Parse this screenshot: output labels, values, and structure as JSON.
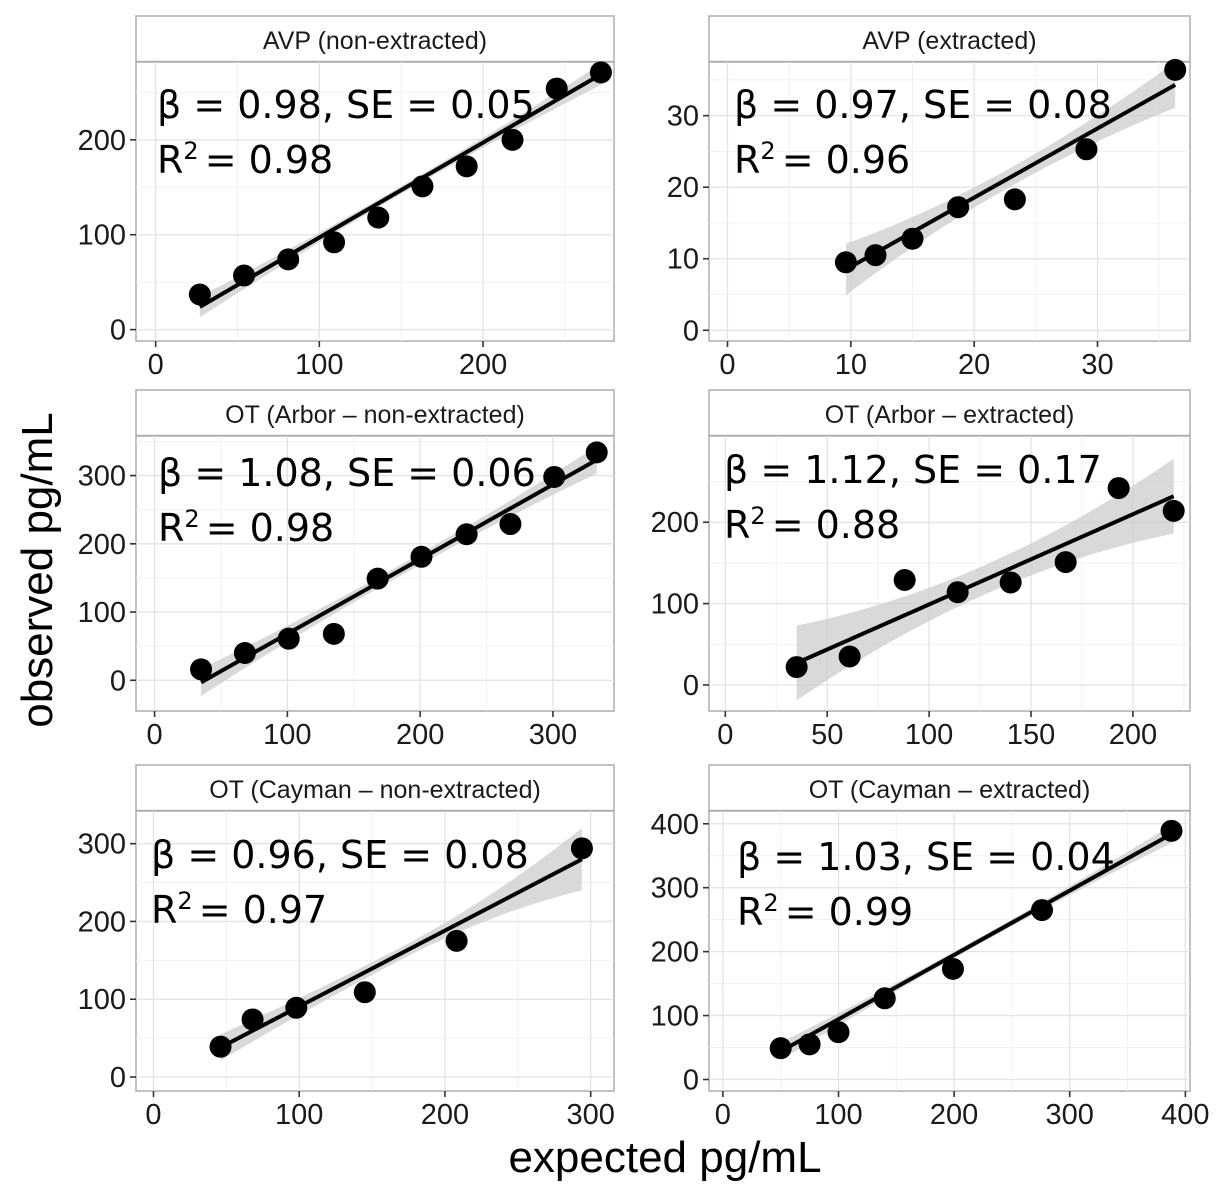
{
  "xlabel": "expected pg/mL",
  "ylabel": "observed pg/mL",
  "chart_data": [
    {
      "type": "scatter",
      "title": "AVP (non-extracted)",
      "fit": "linear with confidence band",
      "beta_line": "β = 0.98, SE = 0.05",
      "r2_prefix": "R",
      "r2_sup": "2",
      "r2_value": "= 0.98",
      "xlim": [
        -12,
        280
      ],
      "ylim": [
        -12,
        282
      ],
      "xticks": [
        0,
        100,
        200
      ],
      "xtick_labels": [
        "0",
        "100",
        "200"
      ],
      "yticks": [
        0,
        100,
        200
      ],
      "ytick_labels": [
        "0",
        "100",
        "200"
      ],
      "fit_line": {
        "x": [
          27,
          272
        ],
        "y": [
          24,
          269
        ]
      },
      "band_halfwidth": [
        11,
        4,
        11
      ],
      "x": [
        27,
        54,
        81,
        109,
        136,
        163,
        190,
        218,
        245,
        272
      ],
      "y": [
        37,
        57,
        74,
        92,
        118,
        151,
        172,
        200,
        254,
        271
      ]
    },
    {
      "type": "scatter",
      "title": "AVP (extracted)",
      "fit": "linear with confidence band",
      "beta_line": "β = 0.97, SE = 0.08",
      "r2_prefix": "R",
      "r2_sup": "2",
      "r2_value": "= 0.96",
      "xlim": [
        -1.5,
        37.5
      ],
      "ylim": [
        -1.5,
        37.5
      ],
      "xticks": [
        0,
        10,
        20,
        30
      ],
      "xtick_labels": [
        "0",
        "10",
        "20",
        "30"
      ],
      "yticks": [
        0,
        10,
        20,
        30
      ],
      "ytick_labels": [
        "0",
        "10",
        "20",
        "30"
      ],
      "fit_line": {
        "x": [
          9.6,
          36.3
        ],
        "y": [
          8.5,
          34.3
        ]
      },
      "band_halfwidth": [
        3.6,
        1.3,
        3.2
      ],
      "x": [
        9.6,
        12,
        15,
        18.7,
        23.3,
        29.1,
        36.3
      ],
      "y": [
        9.5,
        10.5,
        12.8,
        17.2,
        18.3,
        25.3,
        36.4
      ]
    },
    {
      "type": "scatter",
      "title": "OT (Arbor – non-extracted)",
      "fit": "linear with confidence band",
      "beta_line": "β = 1.08, SE = 0.06",
      "r2_prefix": "R",
      "r2_sup": "2",
      "r2_value": "= 0.98",
      "xlim": [
        -14,
        346
      ],
      "ylim": [
        -45,
        358
      ],
      "xticks": [
        0,
        100,
        200,
        300
      ],
      "xtick_labels": [
        "0",
        "100",
        "200",
        "300"
      ],
      "yticks": [
        0,
        100,
        200,
        300
      ],
      "ytick_labels": [
        "0",
        "100",
        "200",
        "300"
      ],
      "fit_line": {
        "x": [
          35,
          333
        ],
        "y": [
          -3,
          323
        ]
      },
      "band_halfwidth": [
        20,
        8,
        20
      ],
      "x": [
        35,
        68,
        101,
        135,
        168,
        201,
        235,
        268,
        301,
        333
      ],
      "y": [
        16,
        40,
        61,
        68,
        149,
        181,
        214,
        229,
        298,
        334
      ]
    },
    {
      "type": "scatter",
      "title": "OT (Arbor – extracted)",
      "fit": "linear with confidence band",
      "beta_line": "β = 1.12, SE = 0.17",
      "r2_prefix": "R",
      "r2_sup": "2",
      "r2_value": "= 0.88",
      "xlim": [
        -8,
        228
      ],
      "ylim": [
        -32,
        306
      ],
      "xticks": [
        0,
        50,
        100,
        150,
        200
      ],
      "xtick_labels": [
        "0",
        "50",
        "100",
        "150",
        "200"
      ],
      "yticks": [
        0,
        100,
        200
      ],
      "ytick_labels": [
        "0",
        "100",
        "200"
      ],
      "fit_line": {
        "x": [
          35,
          220
        ],
        "y": [
          27,
          232
        ]
      },
      "band_halfwidth": [
        46,
        18,
        46
      ],
      "x": [
        35,
        61,
        88,
        114,
        140,
        167,
        193,
        220
      ],
      "y": [
        22,
        35,
        129,
        114,
        126,
        151,
        242,
        214
      ]
    },
    {
      "type": "scatter",
      "title": "OT (Cayman – non-extracted)",
      "fit": "linear with confidence band",
      "beta_line": "β = 0.96, SE = 0.08",
      "r2_prefix": "R",
      "r2_sup": "2",
      "r2_value": "= 0.97",
      "xlim": [
        -12,
        316
      ],
      "ylim": [
        -18,
        342
      ],
      "xticks": [
        0,
        100,
        200,
        300
      ],
      "xtick_labels": [
        "0",
        "100",
        "200",
        "300"
      ],
      "yticks": [
        0,
        100,
        200,
        300
      ],
      "ytick_labels": [
        "0",
        "100",
        "200",
        "300"
      ],
      "fit_line": {
        "x": [
          46,
          294
        ],
        "y": [
          38,
          280
        ]
      },
      "band_halfwidth": [
        17,
        8,
        40
      ],
      "x": [
        46,
        68,
        98,
        145,
        208,
        294
      ],
      "y": [
        39,
        74,
        89,
        109,
        175,
        294
      ]
    },
    {
      "type": "scatter",
      "title": "OT (Cayman – extracted)",
      "fit": "linear with confidence band",
      "beta_line": "β = 1.03, SE = 0.04",
      "r2_prefix": "R",
      "r2_sup": "2",
      "r2_value": "= 0.99",
      "xlim": [
        -12,
        404
      ],
      "ylim": [
        -18,
        420
      ],
      "xticks": [
        0,
        100,
        200,
        300,
        400
      ],
      "xtick_labels": [
        "0",
        "100",
        "200",
        "300",
        "400"
      ],
      "yticks": [
        0,
        100,
        200,
        300,
        400
      ],
      "ytick_labels": [
        "0",
        "100",
        "200",
        "300",
        "400"
      ],
      "fit_line": {
        "x": [
          50,
          388
        ],
        "y": [
          44,
          384
        ]
      },
      "band_halfwidth": [
        14,
        5,
        14
      ],
      "x": [
        50,
        75,
        100,
        140,
        199,
        276,
        388
      ],
      "y": [
        49,
        55,
        74,
        127,
        173,
        265,
        389
      ]
    }
  ]
}
